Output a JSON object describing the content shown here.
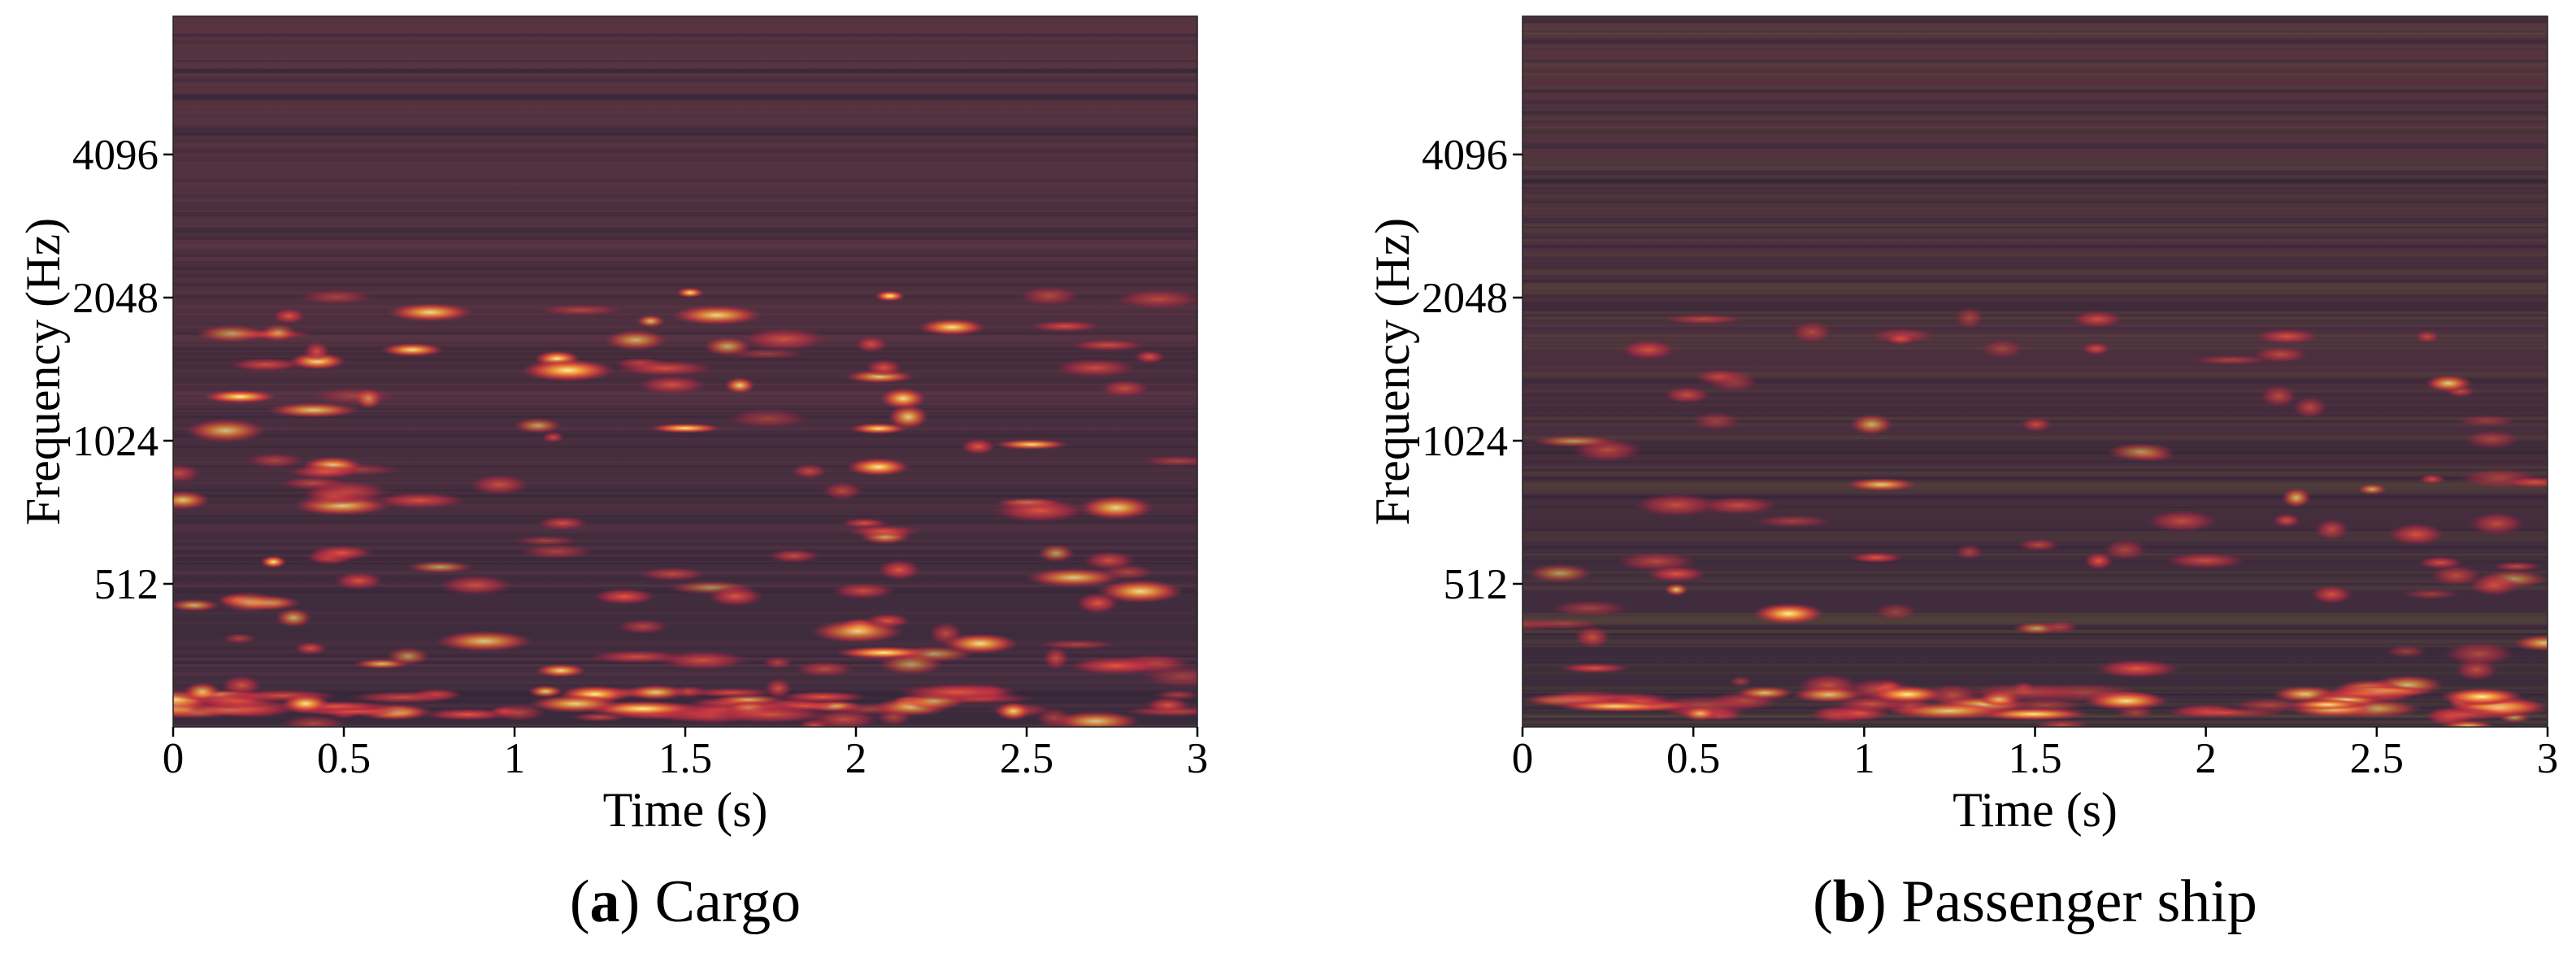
{
  "chart_data": [
    {
      "type": "spectrogram",
      "caption": [
        "(",
        "a",
        ") Cargo"
      ],
      "xlabel": "Time (s)",
      "ylabel": "Frequency (Hz)",
      "xlim": [
        0,
        3
      ],
      "xticks": [
        0,
        0.5,
        1,
        1.5,
        2,
        2.5,
        3
      ],
      "ylim": [
        256,
        8000
      ],
      "yticks": [
        512,
        1024,
        2048,
        4096
      ],
      "log_y": true
    },
    {
      "type": "spectrogram",
      "caption": [
        "(",
        "b",
        ") Passenger ship"
      ],
      "xlabel": "Time (s)",
      "ylabel": "Frequency (Hz)",
      "xlim": [
        0,
        3
      ],
      "xticks": [
        0,
        0.5,
        1,
        1.5,
        2,
        2.5,
        3
      ],
      "ylim": [
        256,
        8000
      ],
      "yticks": [
        512,
        1024,
        2048,
        4096
      ],
      "log_y": true
    }
  ]
}
